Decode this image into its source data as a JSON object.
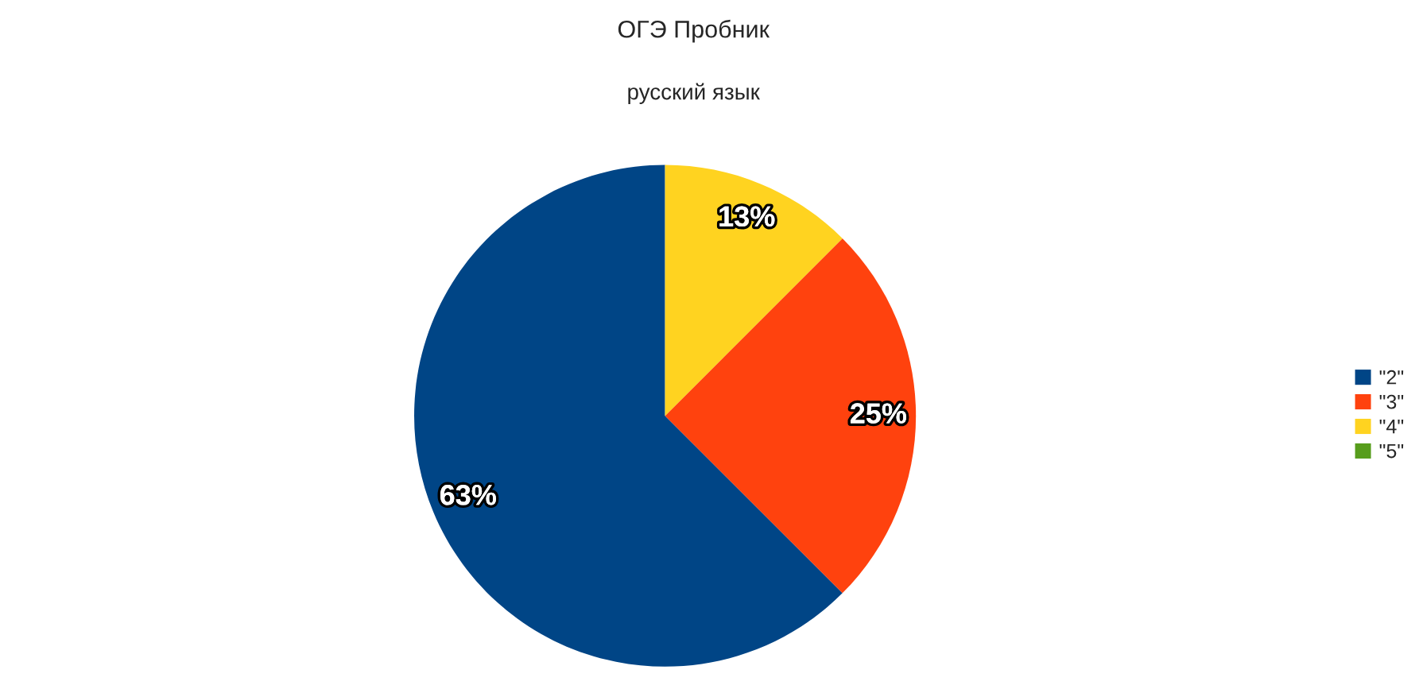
{
  "chart_data": {
    "type": "pie",
    "title": "ОГЭ Пробник",
    "subtitle": "русский язык",
    "categories": [
      "\"2\"",
      "\"3\"",
      "\"4\"",
      "\"5\""
    ],
    "values": [
      62.5,
      25,
      12.5,
      0
    ],
    "value_labels": [
      "63%",
      "25%",
      "13%",
      null
    ],
    "colors": [
      "#004586",
      "#ff420e",
      "#ffd320",
      "#579d1c"
    ],
    "legend": "right"
  }
}
